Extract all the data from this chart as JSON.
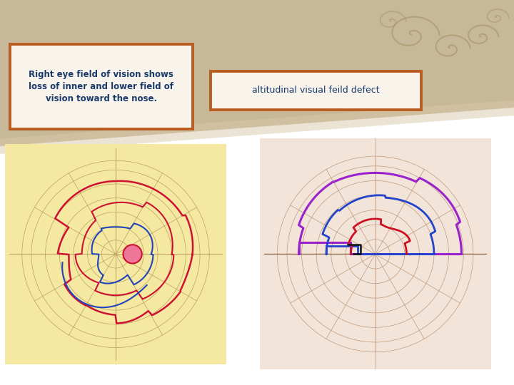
{
  "bg_top_color": "#c8b89a",
  "bg_bottom_color": "#ffffff",
  "text_box1_text": "Right eye field of vision shows\nloss of inner and lower field of\nvision toward the nose.",
  "text_box2_text": "altitudinal visual feild defect",
  "text_box_border_color": "#b85c20",
  "text_box_bg_color": "#f8f4ec",
  "text_color": "#1a3a6b",
  "vf_left_bg": "#f5e8a0",
  "vf_right_bg": "#f2e4d8",
  "grid_color_left": "#b8a060",
  "grid_color_right": "#c09878",
  "radii": [
    0.15,
    0.3,
    0.45,
    0.6,
    0.75,
    0.9,
    1.0
  ],
  "angles_deg": [
    0,
    30,
    60,
    90,
    120,
    150,
    180,
    210,
    240,
    270,
    300,
    330
  ]
}
